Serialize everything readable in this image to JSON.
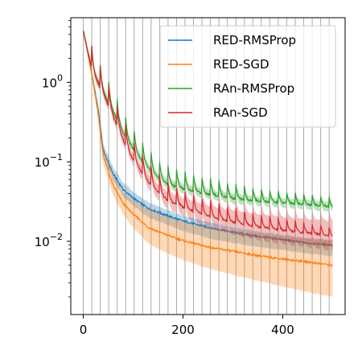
{
  "chart_data": {
    "type": "line",
    "title": "",
    "xlabel": "",
    "ylabel": "",
    "xscale": "linear",
    "yscale": "log",
    "xlim": [
      -25,
      525
    ],
    "ylim": [
      0.0012,
      6.5
    ],
    "grid": "vertical lines at restart points",
    "vlines": [
      0,
      17,
      34,
      51,
      68,
      85,
      102,
      119,
      136,
      153,
      170,
      187,
      204,
      221,
      238,
      255,
      272,
      289,
      306,
      323,
      340,
      357,
      374,
      391,
      408,
      425,
      442,
      459,
      476,
      493
    ],
    "x_ticks": [
      {
        "value": 0,
        "label": "0"
      },
      {
        "value": 200,
        "label": "200"
      },
      {
        "value": 400,
        "label": "400"
      }
    ],
    "y_ticks": [
      {
        "value": 1,
        "base": "10",
        "exp": "0"
      },
      {
        "value": 0.1,
        "base": "10",
        "exp": "−1"
      },
      {
        "value": 0.01,
        "base": "10",
        "exp": "−2"
      }
    ],
    "legend_position": "top-right",
    "series": [
      {
        "name": "RED-RMSProp",
        "color": "#1f77b4",
        "x": [
          0,
          10,
          20,
          30,
          40,
          60,
          80,
          100,
          130,
          160,
          200,
          250,
          300,
          350,
          400,
          450,
          500
        ],
        "y": [
          4.5,
          2.2,
          1.0,
          0.45,
          0.14,
          0.07,
          0.045,
          0.035,
          0.026,
          0.022,
          0.018,
          0.015,
          0.013,
          0.0115,
          0.0105,
          0.0095,
          0.009
        ],
        "band_upper": [
          4.6,
          2.4,
          1.15,
          0.55,
          0.17,
          0.085,
          0.055,
          0.042,
          0.031,
          0.026,
          0.021,
          0.0175,
          0.015,
          0.0132,
          0.012,
          0.011,
          0.0105
        ],
        "band_lower": [
          4.4,
          2.0,
          0.9,
          0.38,
          0.12,
          0.058,
          0.037,
          0.028,
          0.02,
          0.017,
          0.0135,
          0.011,
          0.0095,
          0.0085,
          0.0078,
          0.007,
          0.0065
        ],
        "spikes": false
      },
      {
        "name": "RED-SGD",
        "color": "#ff7f0e",
        "x": [
          0,
          10,
          20,
          30,
          40,
          60,
          80,
          100,
          130,
          160,
          200,
          250,
          300,
          350,
          400,
          450,
          500
        ],
        "y": [
          4.5,
          2.2,
          1.0,
          0.4,
          0.12,
          0.05,
          0.03,
          0.022,
          0.015,
          0.0125,
          0.0102,
          0.0085,
          0.0075,
          0.0066,
          0.006,
          0.0055,
          0.005
        ],
        "band_upper": [
          4.6,
          2.4,
          1.12,
          0.48,
          0.15,
          0.065,
          0.042,
          0.033,
          0.025,
          0.021,
          0.0175,
          0.0152,
          0.0137,
          0.0125,
          0.0115,
          0.0108,
          0.0102
        ],
        "band_lower": [
          4.4,
          2.0,
          0.9,
          0.33,
          0.095,
          0.038,
          0.022,
          0.015,
          0.0095,
          0.0075,
          0.0058,
          0.0046,
          0.0038,
          0.0032,
          0.0027,
          0.0023,
          0.002
        ],
        "spikes": false
      },
      {
        "name": "RAn-RMSProp",
        "color": "#2ca02c",
        "x": [
          0,
          10,
          20,
          34,
          51,
          68,
          85,
          102,
          119,
          136,
          153,
          170,
          204,
          238,
          272,
          306,
          340,
          374,
          408,
          442,
          476,
          500
        ],
        "y": [
          4.5,
          2.3,
          1.3,
          0.9,
          0.55,
          0.33,
          0.2,
          0.14,
          0.1,
          0.075,
          0.06,
          0.052,
          0.045,
          0.04,
          0.037,
          0.034,
          0.032,
          0.031,
          0.03,
          0.029,
          0.028,
          0.027
        ],
        "band_upper": [
          4.6,
          2.5,
          1.45,
          1.0,
          0.62,
          0.37,
          0.23,
          0.16,
          0.115,
          0.086,
          0.068,
          0.06,
          0.052,
          0.046,
          0.042,
          0.039,
          0.036,
          0.035,
          0.034,
          0.033,
          0.032,
          0.031
        ],
        "band_lower": [
          4.4,
          2.1,
          1.15,
          0.8,
          0.48,
          0.29,
          0.18,
          0.125,
          0.088,
          0.066,
          0.053,
          0.045,
          0.039,
          0.035,
          0.032,
          0.029,
          0.028,
          0.027,
          0.026,
          0.025,
          0.024,
          0.023
        ],
        "spikes": true
      },
      {
        "name": "RAn-SGD",
        "color": "#d62728",
        "x": [
          0,
          10,
          20,
          34,
          51,
          68,
          85,
          102,
          119,
          136,
          153,
          170,
          204,
          238,
          272,
          306,
          340,
          374,
          408,
          442,
          476,
          500
        ],
        "y": [
          4.5,
          2.3,
          1.3,
          0.85,
          0.5,
          0.28,
          0.16,
          0.1,
          0.07,
          0.05,
          0.04,
          0.032,
          0.026,
          0.022,
          0.019,
          0.017,
          0.0155,
          0.0145,
          0.0135,
          0.0128,
          0.0122,
          0.0115
        ],
        "band_upper": [
          4.6,
          2.5,
          1.45,
          0.95,
          0.57,
          0.32,
          0.19,
          0.12,
          0.085,
          0.062,
          0.05,
          0.041,
          0.034,
          0.029,
          0.026,
          0.024,
          0.022,
          0.021,
          0.02,
          0.019,
          0.0185,
          0.018
        ],
        "band_lower": [
          4.4,
          2.1,
          1.15,
          0.75,
          0.44,
          0.24,
          0.135,
          0.085,
          0.058,
          0.041,
          0.032,
          0.025,
          0.02,
          0.016,
          0.0135,
          0.0118,
          0.0105,
          0.0096,
          0.009,
          0.0084,
          0.008,
          0.0075
        ],
        "spikes": true
      }
    ]
  }
}
